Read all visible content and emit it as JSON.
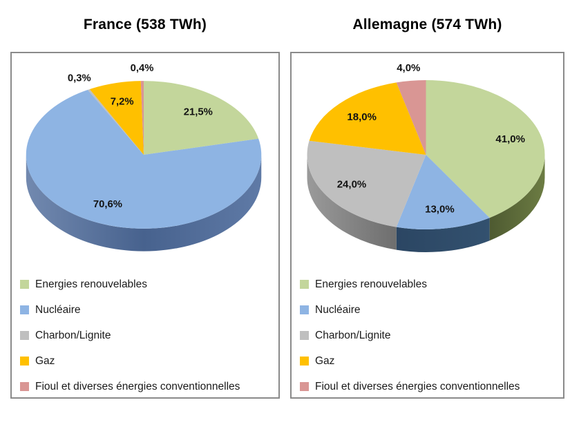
{
  "figure": {
    "background": "#FFFFFF",
    "panel_border_color": "#8A8A8A",
    "label_text_color": "#131313"
  },
  "chart_data": [
    {
      "type": "pie",
      "style": "3d",
      "title": "France (538 TWh)",
      "country": "France",
      "total_label": "538 TWh",
      "legend_position": "bottom",
      "categories": [
        "Energies renouvelables",
        "Nucléaire",
        "Charbon/Lignite",
        "Gaz",
        "Fioul et diverses énergies conventionnelles"
      ],
      "values": [
        21.5,
        70.6,
        0.3,
        7.2,
        0.4
      ],
      "value_labels": [
        "21,5%",
        "70,6%",
        "0,3%",
        "7,2%",
        "0,4%"
      ],
      "colors": [
        "#C3D69B",
        "#8EB4E3",
        "#BFBFBF",
        "#FFC000",
        "#D99694"
      ],
      "side_gradients": [
        null,
        [
          "#5F7AA6",
          "#47628E",
          "#7289AF"
        ],
        null,
        null,
        null
      ]
    },
    {
      "type": "pie",
      "style": "3d",
      "title": "Allemagne (574 TWh)",
      "country": "Allemagne",
      "total_label": "574 TWh",
      "legend_position": "bottom",
      "categories": [
        "Energies renouvelables",
        "Nucléaire",
        "Charbon/Lignite",
        "Gaz",
        "Fioul et diverses énergies conventionnelles"
      ],
      "values": [
        41.0,
        13.0,
        24.0,
        18.0,
        4.0
      ],
      "value_labels": [
        "41,0%",
        "13,0%",
        "24,0%",
        "18,0%",
        "4,0%"
      ],
      "colors": [
        "#C3D69B",
        "#8EB4E3",
        "#BFBFBF",
        "#FFC000",
        "#D99694"
      ],
      "side_gradients": [
        [
          "#6C7C43",
          "#4E5A31"
        ],
        [
          "#33516F",
          "#2B4663"
        ],
        [
          "#6E6E6E",
          "#9A9A9A"
        ],
        null,
        null
      ]
    }
  ]
}
